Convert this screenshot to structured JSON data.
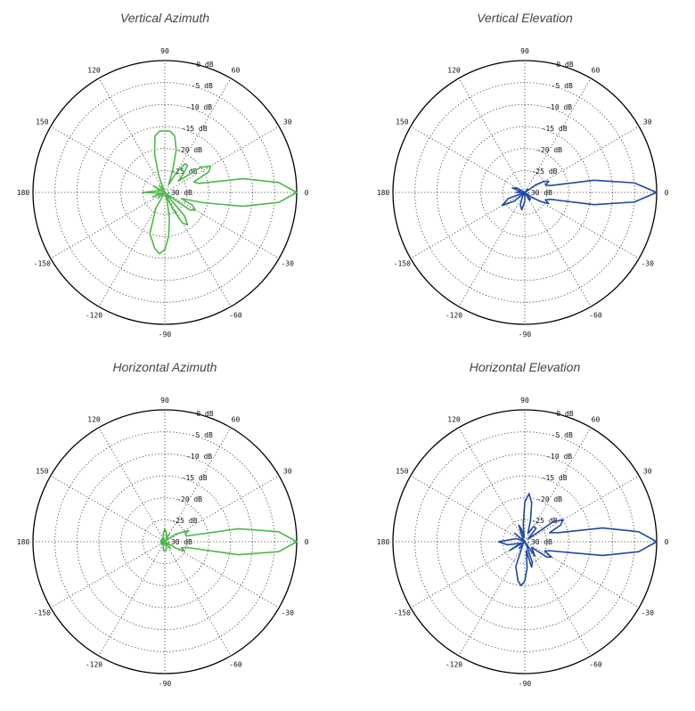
{
  "chart_data": [
    {
      "type": "polar",
      "title": "Vertical Azimuth",
      "color": "#4bb84b",
      "r_unit": "dB",
      "r_ticks": [
        "0 dB",
        "-5 dB",
        "-10 dB",
        "-15 dB",
        "-20 dB",
        "-25 dB",
        "-30 dB"
      ],
      "angle_ticks": [
        "0",
        "30",
        "60",
        "90",
        "120",
        "150",
        "180",
        "-150",
        "-120",
        "-90",
        "-60",
        "-30"
      ],
      "series": [
        {
          "angles_deg": [
            -180,
            -170,
            -160,
            -150,
            -140,
            -130,
            -120,
            -110,
            -100,
            -95,
            -90,
            -85,
            -80,
            -75,
            -70,
            -65,
            -60,
            -55,
            -50,
            -45,
            -40,
            -35,
            -30,
            -25,
            -20,
            -15,
            -10,
            -5,
            0,
            5,
            10,
            15,
            20,
            25,
            30,
            35,
            40,
            45,
            50,
            55,
            60,
            65,
            70,
            75,
            80,
            85,
            90,
            95,
            100,
            105,
            110,
            120,
            130,
            140,
            150,
            160,
            170
          ],
          "values_db": [
            -25,
            -29,
            -27,
            -30,
            -28,
            -30,
            -26,
            -20,
            -17,
            -16,
            -17,
            -20,
            -24,
            -28,
            -30,
            -26,
            -22,
            -21,
            -23,
            -30,
            -29,
            -23,
            -22,
            -23,
            -26,
            -21,
            -12,
            -4,
            0,
            -4,
            -12,
            -22,
            -23,
            -19,
            -18,
            -20,
            -26,
            -24,
            -22,
            -22,
            -25,
            -28,
            -25,
            -20,
            -17,
            -16,
            -16,
            -16,
            -17,
            -21,
            -26,
            -30,
            -28,
            -30,
            -27,
            -29,
            -28
          ]
        }
      ]
    },
    {
      "type": "polar",
      "title": "Vertical Elevation",
      "color": "#1e47a8",
      "r_unit": "dB",
      "r_ticks": [
        "0 dB",
        "-5 dB",
        "-10 dB",
        "-15 dB",
        "-20 dB",
        "-25 dB",
        "-30 dB"
      ],
      "angle_ticks": [
        "0",
        "30",
        "60",
        "90",
        "120",
        "150",
        "180",
        "-150",
        "-120",
        "-90",
        "-60",
        "-30"
      ],
      "series": [
        {
          "angles_deg": [
            -180,
            -170,
            -160,
            -150,
            -140,
            -130,
            -120,
            -110,
            -100,
            -90,
            -80,
            -70,
            -60,
            -50,
            -40,
            -35,
            -30,
            -25,
            -20,
            -15,
            -10,
            -5,
            0,
            5,
            10,
            15,
            20,
            25,
            30,
            35,
            40,
            50,
            60,
            70,
            80,
            90,
            100,
            110,
            120,
            130,
            140,
            150,
            160,
            170
          ],
          "values_db": [
            -28,
            -30,
            -26,
            -24,
            -27,
            -30,
            -29,
            -27,
            -26,
            -28,
            -30,
            -30,
            -28,
            -28,
            -30,
            -28,
            -26,
            -24,
            -25,
            -24,
            -14,
            -5,
            0,
            -5,
            -14,
            -24,
            -25,
            -24,
            -25,
            -27,
            -30,
            -29,
            -30,
            -30,
            -30,
            -30,
            -30,
            -30,
            -30,
            -30,
            -30,
            -28,
            -27,
            -29
          ]
        }
      ]
    },
    {
      "type": "polar",
      "title": "Horizontal Azimuth",
      "color": "#4bb84b",
      "r_unit": "dB",
      "r_ticks": [
        "0 dB",
        "-5 dB",
        "-10 dB",
        "-15 dB",
        "-20 dB",
        "-25 dB",
        "-30 dB"
      ],
      "angle_ticks": [
        "0",
        "30",
        "60",
        "90",
        "120",
        "150",
        "180",
        "-150",
        "-120",
        "-90",
        "-60",
        "-30"
      ],
      "series": [
        {
          "angles_deg": [
            -180,
            -170,
            -160,
            -150,
            -140,
            -130,
            -120,
            -110,
            -100,
            -90,
            -80,
            -70,
            -60,
            -50,
            -40,
            -35,
            -30,
            -25,
            -20,
            -15,
            -10,
            -5,
            0,
            5,
            10,
            15,
            20,
            25,
            30,
            35,
            40,
            50,
            60,
            70,
            80,
            90,
            100,
            110,
            120,
            130,
            140,
            150,
            160,
            170
          ],
          "values_db": [
            -29,
            -30,
            -29,
            -30,
            -29,
            -30,
            -30,
            -29,
            -28,
            -28,
            -28,
            -29,
            -30,
            -28,
            -30,
            -30,
            -27,
            -25,
            -26,
            -25,
            -13,
            -4,
            0,
            -4,
            -13,
            -25,
            -25,
            -24,
            -26,
            -27,
            -29,
            -30,
            -28,
            -29,
            -28,
            -27,
            -28,
            -29,
            -30,
            -29,
            -30,
            -30,
            -29,
            -30
          ]
        }
      ]
    },
    {
      "type": "polar",
      "title": "Horizontal Elevation",
      "color": "#1e47a8",
      "r_unit": "dB",
      "r_ticks": [
        "0 dB",
        "-5 dB",
        "-10 dB",
        "-15 dB",
        "-20 dB",
        "-25 dB",
        "-30 dB"
      ],
      "angle_ticks": [
        "0",
        "30",
        "60",
        "90",
        "120",
        "150",
        "180",
        "-150",
        "-120",
        "-90",
        "-60",
        "-30"
      ],
      "series": [
        {
          "angles_deg": [
            -180,
            -170,
            -160,
            -150,
            -140,
            -130,
            -120,
            -110,
            -100,
            -95,
            -90,
            -85,
            -80,
            -75,
            -70,
            -65,
            -60,
            -55,
            -50,
            -40,
            -35,
            -30,
            -25,
            -20,
            -15,
            -10,
            -5,
            0,
            5,
            10,
            15,
            20,
            25,
            30,
            35,
            40,
            50,
            60,
            70,
            75,
            80,
            85,
            90,
            95,
            100,
            105,
            110,
            120,
            130,
            140,
            150,
            160,
            170
          ],
          "values_db": [
            -24,
            -26,
            -29,
            -26,
            -30,
            -28,
            -29,
            -24,
            -21,
            -20,
            -21,
            -24,
            -28,
            -24,
            -25,
            -29,
            -30,
            -26,
            -27,
            -28,
            -24,
            -23,
            -25,
            -24,
            -21,
            -12,
            -4,
            0,
            -4,
            -12,
            -22,
            -24,
            -21,
            -20,
            -22,
            -29,
            -26,
            -26,
            -28,
            -25,
            -21,
            -19,
            -21,
            -26,
            -29,
            -27,
            -26,
            -29,
            -30,
            -27,
            -30,
            -28,
            -27
          ]
        }
      ]
    }
  ]
}
